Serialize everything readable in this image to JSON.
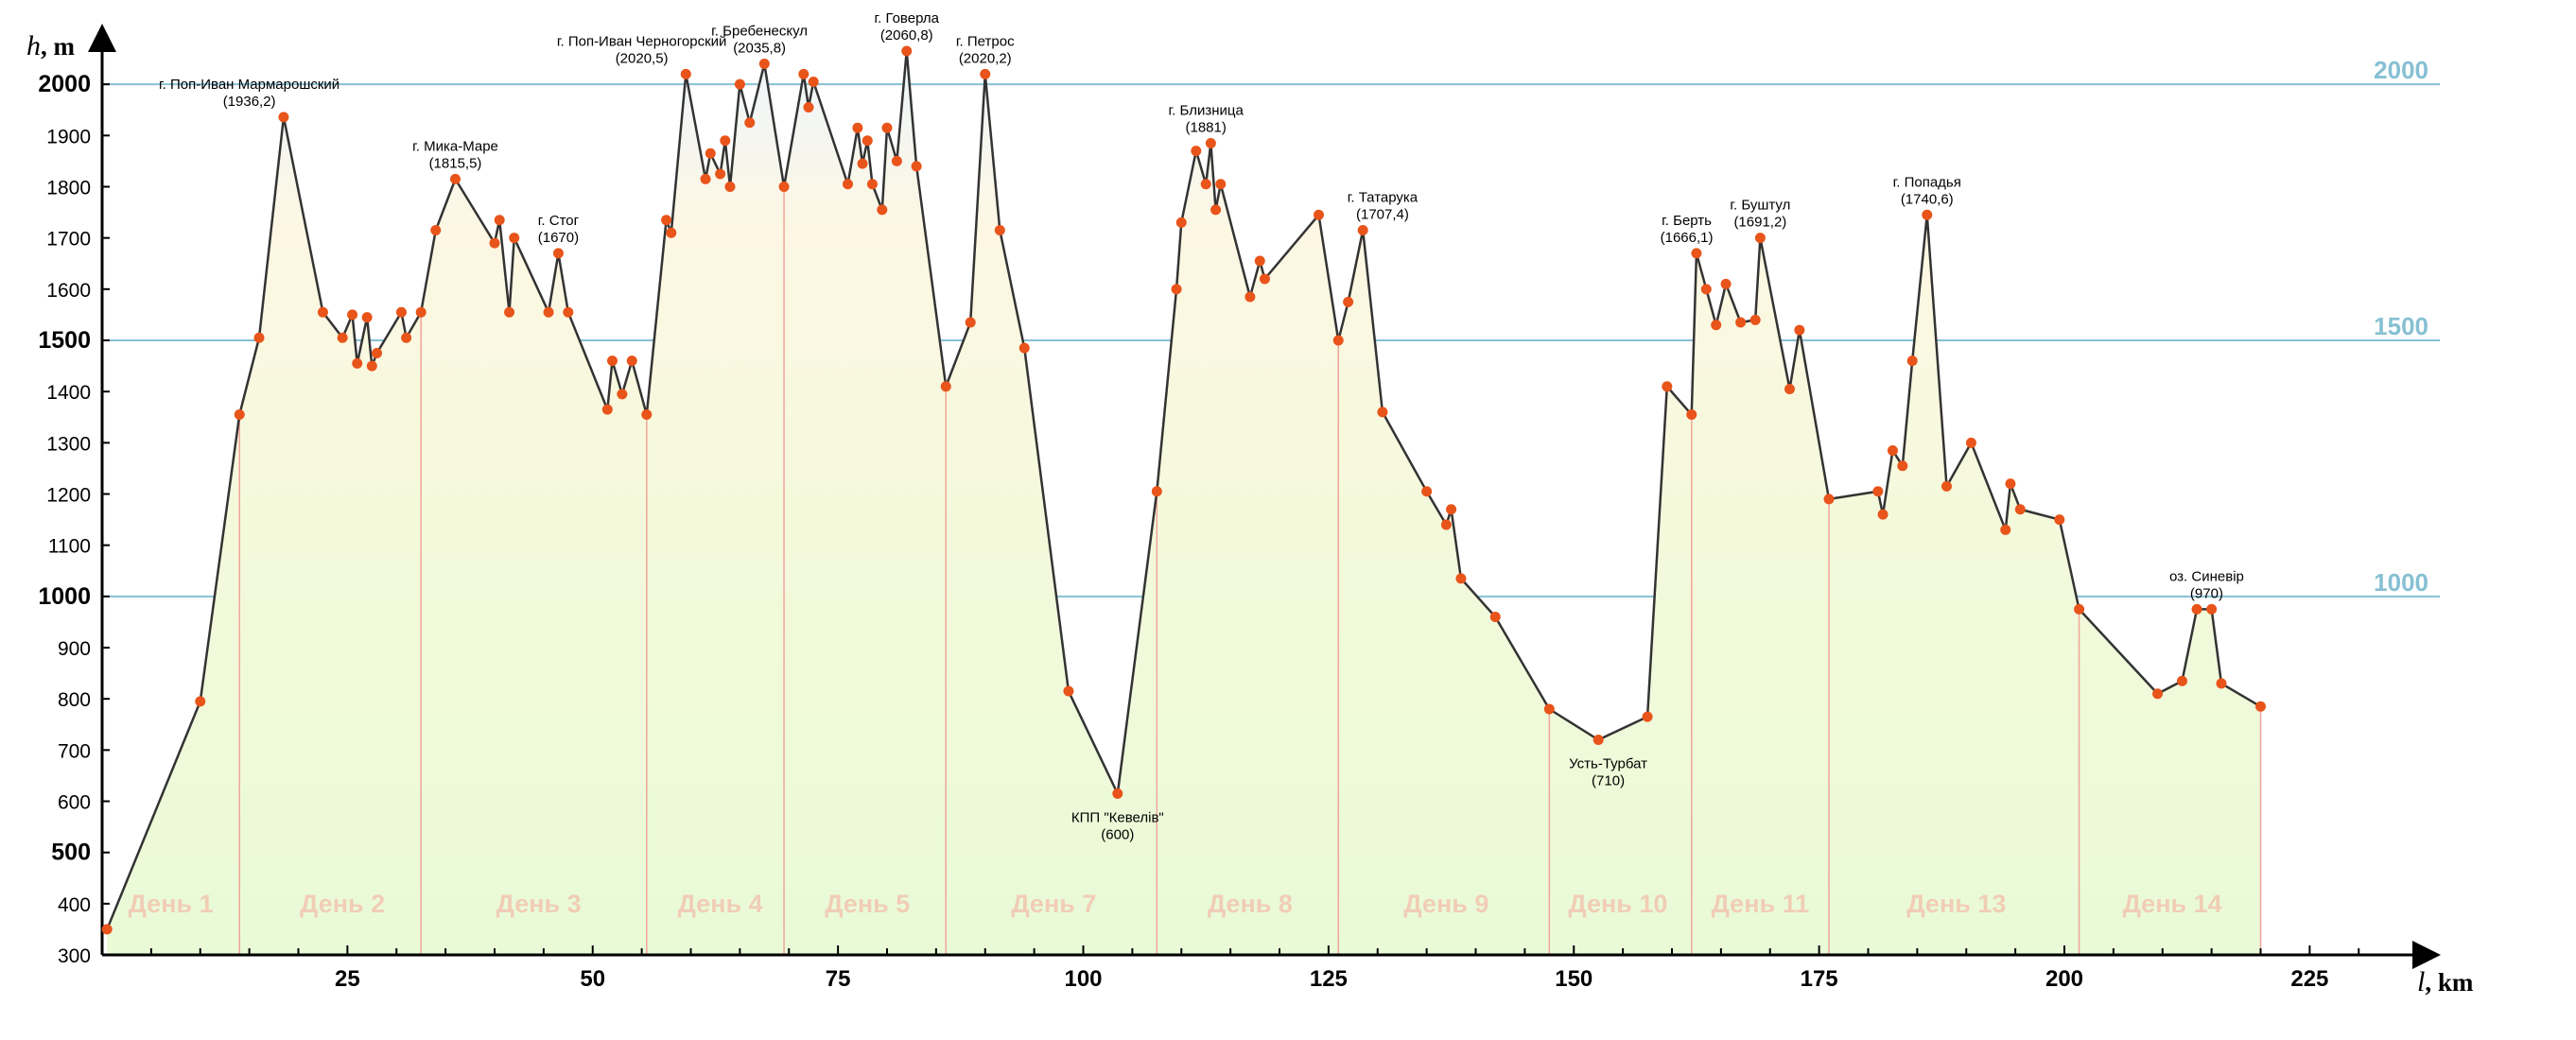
{
  "chart_data": {
    "type": "area",
    "title": "",
    "xlabel_var": "l",
    "xlabel_unit": ", km",
    "ylabel_var": "h",
    "ylabel_unit": ", m",
    "xlim": [
      0,
      232
    ],
    "ylim": [
      300,
      2100
    ],
    "x_ticks": [
      25,
      50,
      75,
      100,
      125,
      150,
      175,
      200,
      225
    ],
    "y_ticks": [
      {
        "value": 300,
        "label": "300",
        "bold": false
      },
      {
        "value": 400,
        "label": "400",
        "bold": false
      },
      {
        "value": 500,
        "label": "500",
        "bold": true
      },
      {
        "value": 600,
        "label": "600",
        "bold": false
      },
      {
        "value": 700,
        "label": "700",
        "bold": false
      },
      {
        "value": 800,
        "label": "800",
        "bold": false
      },
      {
        "value": 900,
        "label": "900",
        "bold": false
      },
      {
        "value": 1000,
        "label": "1000",
        "bold": true
      },
      {
        "value": 1100,
        "label": "1100",
        "bold": false
      },
      {
        "value": 1200,
        "label": "1200",
        "bold": false
      },
      {
        "value": 1300,
        "label": "1300",
        "bold": false
      },
      {
        "value": 1400,
        "label": "1400",
        "bold": false
      },
      {
        "value": 1500,
        "label": "1500",
        "bold": true
      },
      {
        "value": 1600,
        "label": "1600",
        "bold": false
      },
      {
        "value": 1700,
        "label": "1700",
        "bold": false
      },
      {
        "value": 1800,
        "label": "1800",
        "bold": false
      },
      {
        "value": 1900,
        "label": "1900",
        "bold": false
      },
      {
        "value": 2000,
        "label": "2000",
        "bold": true
      }
    ],
    "reference_lines": [
      {
        "value": 2000,
        "label": "2000"
      },
      {
        "value": 1500,
        "label": "1500"
      },
      {
        "value": 1000,
        "label": "1000"
      }
    ],
    "colors": {
      "line": "#333333",
      "point": "#e8541a",
      "day_separator": "#f0a59a",
      "reference_line": "#86c0d3",
      "fill_low": "#e9fad7",
      "fill_mid": "#fdf7e3",
      "fill_high": "#eef6fc"
    },
    "points": [
      {
        "x": 0.5,
        "y": 350
      },
      {
        "x": 10,
        "y": 795
      },
      {
        "x": 14,
        "y": 1355
      },
      {
        "x": 16,
        "y": 1505
      },
      {
        "x": 18.5,
        "y": 1936
      },
      {
        "x": 22.5,
        "y": 1555
      },
      {
        "x": 24.5,
        "y": 1505
      },
      {
        "x": 25.5,
        "y": 1550
      },
      {
        "x": 26,
        "y": 1455
      },
      {
        "x": 27,
        "y": 1545
      },
      {
        "x": 27.5,
        "y": 1450
      },
      {
        "x": 28,
        "y": 1475
      },
      {
        "x": 30.5,
        "y": 1555
      },
      {
        "x": 31,
        "y": 1505
      },
      {
        "x": 32.5,
        "y": 1555
      },
      {
        "x": 34,
        "y": 1715
      },
      {
        "x": 36,
        "y": 1815
      },
      {
        "x": 40,
        "y": 1690
      },
      {
        "x": 40.5,
        "y": 1735
      },
      {
        "x": 41.5,
        "y": 1555
      },
      {
        "x": 42,
        "y": 1700
      },
      {
        "x": 45.5,
        "y": 1555
      },
      {
        "x": 46.5,
        "y": 1670
      },
      {
        "x": 47.5,
        "y": 1555
      },
      {
        "x": 51.5,
        "y": 1365
      },
      {
        "x": 52,
        "y": 1460
      },
      {
        "x": 53,
        "y": 1395
      },
      {
        "x": 54,
        "y": 1460
      },
      {
        "x": 55.5,
        "y": 1355
      },
      {
        "x": 57.5,
        "y": 1735
      },
      {
        "x": 58,
        "y": 1710
      },
      {
        "x": 59.5,
        "y": 2020
      },
      {
        "x": 61.5,
        "y": 1815
      },
      {
        "x": 62,
        "y": 1865
      },
      {
        "x": 63,
        "y": 1825
      },
      {
        "x": 63.5,
        "y": 1890
      },
      {
        "x": 64,
        "y": 1800
      },
      {
        "x": 65,
        "y": 2000
      },
      {
        "x": 66,
        "y": 1925
      },
      {
        "x": 67.5,
        "y": 2040
      },
      {
        "x": 69.5,
        "y": 1800
      },
      {
        "x": 71.5,
        "y": 2020
      },
      {
        "x": 72,
        "y": 1955
      },
      {
        "x": 72.5,
        "y": 2005
      },
      {
        "x": 76,
        "y": 1805
      },
      {
        "x": 77,
        "y": 1915
      },
      {
        "x": 77.5,
        "y": 1845
      },
      {
        "x": 78,
        "y": 1890
      },
      {
        "x": 78.5,
        "y": 1805
      },
      {
        "x": 79.5,
        "y": 1755
      },
      {
        "x": 80,
        "y": 1915
      },
      {
        "x": 81,
        "y": 1850
      },
      {
        "x": 82,
        "y": 2065
      },
      {
        "x": 83,
        "y": 1840
      },
      {
        "x": 86,
        "y": 1410
      },
      {
        "x": 88.5,
        "y": 1535
      },
      {
        "x": 90,
        "y": 2020
      },
      {
        "x": 91.5,
        "y": 1715
      },
      {
        "x": 94,
        "y": 1485
      },
      {
        "x": 98.5,
        "y": 815
      },
      {
        "x": 103.5,
        "y": 615
      },
      {
        "x": 107.5,
        "y": 1205
      },
      {
        "x": 109.5,
        "y": 1600
      },
      {
        "x": 110,
        "y": 1730
      },
      {
        "x": 111.5,
        "y": 1870
      },
      {
        "x": 112.5,
        "y": 1805
      },
      {
        "x": 113,
        "y": 1885
      },
      {
        "x": 113.5,
        "y": 1755
      },
      {
        "x": 114,
        "y": 1805
      },
      {
        "x": 117,
        "y": 1585
      },
      {
        "x": 118,
        "y": 1655
      },
      {
        "x": 118.5,
        "y": 1620
      },
      {
        "x": 124,
        "y": 1745
      },
      {
        "x": 126,
        "y": 1500
      },
      {
        "x": 127,
        "y": 1575
      },
      {
        "x": 128.5,
        "y": 1715
      },
      {
        "x": 130.5,
        "y": 1360
      },
      {
        "x": 135,
        "y": 1205
      },
      {
        "x": 137,
        "y": 1140
      },
      {
        "x": 137.5,
        "y": 1170
      },
      {
        "x": 138.5,
        "y": 1035
      },
      {
        "x": 142,
        "y": 960
      },
      {
        "x": 147.5,
        "y": 780
      },
      {
        "x": 152.5,
        "y": 720
      },
      {
        "x": 157.5,
        "y": 765
      },
      {
        "x": 159.5,
        "y": 1410
      },
      {
        "x": 162,
        "y": 1355
      },
      {
        "x": 162.5,
        "y": 1670
      },
      {
        "x": 163.5,
        "y": 1600
      },
      {
        "x": 164.5,
        "y": 1530
      },
      {
        "x": 165.5,
        "y": 1610
      },
      {
        "x": 167,
        "y": 1535
      },
      {
        "x": 168.5,
        "y": 1540
      },
      {
        "x": 169,
        "y": 1700
      },
      {
        "x": 172,
        "y": 1405
      },
      {
        "x": 173,
        "y": 1520
      },
      {
        "x": 176,
        "y": 1190
      },
      {
        "x": 181,
        "y": 1205
      },
      {
        "x": 181.5,
        "y": 1160
      },
      {
        "x": 182.5,
        "y": 1285
      },
      {
        "x": 183.5,
        "y": 1255
      },
      {
        "x": 184.5,
        "y": 1460
      },
      {
        "x": 186,
        "y": 1745
      },
      {
        "x": 188,
        "y": 1215
      },
      {
        "x": 190.5,
        "y": 1300
      },
      {
        "x": 194,
        "y": 1130
      },
      {
        "x": 194.5,
        "y": 1220
      },
      {
        "x": 195.5,
        "y": 1170
      },
      {
        "x": 199.5,
        "y": 1150
      },
      {
        "x": 201.5,
        "y": 975
      },
      {
        "x": 209.5,
        "y": 810
      },
      {
        "x": 212,
        "y": 835
      },
      {
        "x": 213.5,
        "y": 975
      },
      {
        "x": 215,
        "y": 975
      },
      {
        "x": 216,
        "y": 830
      },
      {
        "x": 220,
        "y": 785
      }
    ],
    "day_separators": [
      14,
      32.5,
      55.5,
      69.5,
      86,
      107.5,
      126,
      147.5,
      162,
      176,
      201.5,
      220
    ],
    "day_labels": [
      {
        "label": "День 1",
        "x": 7
      },
      {
        "label": "День 2",
        "x": 24.5
      },
      {
        "label": "День 3",
        "x": 44.5
      },
      {
        "label": "День 4",
        "x": 63
      },
      {
        "label": "День 5",
        "x": 78
      },
      {
        "label": "День 7",
        "x": 97
      },
      {
        "label": "День 8",
        "x": 117
      },
      {
        "label": "День 9",
        "x": 137
      },
      {
        "label": "День 10",
        "x": 154.5
      },
      {
        "label": "День 11",
        "x": 169
      },
      {
        "label": "День 13",
        "x": 189
      },
      {
        "label": "День 14",
        "x": 211
      }
    ],
    "annotations": [
      {
        "lines": [
          "г. Поп-Иван Мармарошский",
          "(1936,2)"
        ],
        "x": 15,
        "y": 1936
      },
      {
        "lines": [
          "г. Мика-Маре",
          "(1815,5)"
        ],
        "x": 36,
        "y": 1815
      },
      {
        "lines": [
          "г. Стог",
          "(1670)"
        ],
        "x": 46.5,
        "y": 1670
      },
      {
        "lines": [
          "г. Поп-Иван Черногорский",
          "(2020,5)"
        ],
        "x": 55,
        "y": 2020
      },
      {
        "lines": [
          "г. Бребенескул",
          "(2035,8)"
        ],
        "x": 67,
        "y": 2040
      },
      {
        "lines": [
          "г. Говерла",
          "(2060,8)"
        ],
        "x": 82,
        "y": 2065
      },
      {
        "lines": [
          "г. Петрос",
          "(2020,2)"
        ],
        "x": 90,
        "y": 2020
      },
      {
        "lines": [
          "КПП \"Кевелів\"",
          "(600)"
        ],
        "x": 103.5,
        "y": 615,
        "below": true
      },
      {
        "lines": [
          "г. Близница",
          "(1881)"
        ],
        "x": 112.5,
        "y": 1885
      },
      {
        "lines": [
          "г. Татарука",
          "(1707,4)"
        ],
        "x": 130.5,
        "y": 1715
      },
      {
        "lines": [
          "Усть-Турбат",
          "(710)"
        ],
        "x": 153.5,
        "y": 720,
        "below": true
      },
      {
        "lines": [
          "г. Берть",
          "(1666,1)"
        ],
        "x": 161.5,
        "y": 1670
      },
      {
        "lines": [
          "г. Буштул",
          "(1691,2)"
        ],
        "x": 169,
        "y": 1700
      },
      {
        "lines": [
          "г. Попадья",
          "(1740,6)"
        ],
        "x": 186,
        "y": 1745
      },
      {
        "lines": [
          "оз. Синевір",
          "(970)"
        ],
        "x": 214.5,
        "y": 975
      }
    ]
  }
}
